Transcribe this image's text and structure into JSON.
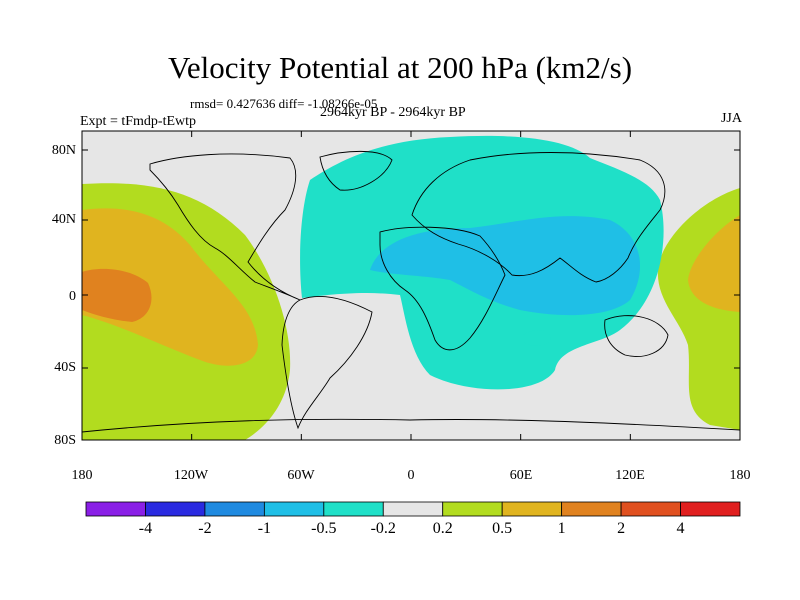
{
  "title": "Velocity Potential at 200 hPa (km2/s)",
  "stats": "rmsd= 0.427636 diff= -1.08266e-05",
  "left_label": "Expt = tFmdp-tEwtp",
  "center_label": "2964kyr BP - 2964kyr BP",
  "season": "JJA",
  "lat_labels": [
    "80N",
    "40N",
    "0",
    "40S",
    "80S"
  ],
  "lon_labels": [
    "180",
    "120W",
    "60W",
    "0",
    "60E",
    "120E",
    "180"
  ],
  "colorbar": {
    "labels": [
      "-4",
      "-2",
      "-1",
      "-0.5",
      "-0.2",
      "0.2",
      "0.5",
      "1",
      "2",
      "4"
    ],
    "colors": [
      "#8a1fe6",
      "#2a2ae0",
      "#1f8ae0",
      "#1fbfe6",
      "#1fe0c8",
      "#e6e6e6",
      "#b2dc1f",
      "#e0b41f",
      "#e0821f",
      "#e0501f",
      "#e01f1f"
    ]
  },
  "fill_colors": {
    "ocean_gray": "#e6e6e6",
    "teal": "#1fe0c8",
    "cyan": "#1fbfe6",
    "green": "#b2dc1f",
    "orange": "#e0b41f",
    "dark_orange": "#e0821f"
  }
}
